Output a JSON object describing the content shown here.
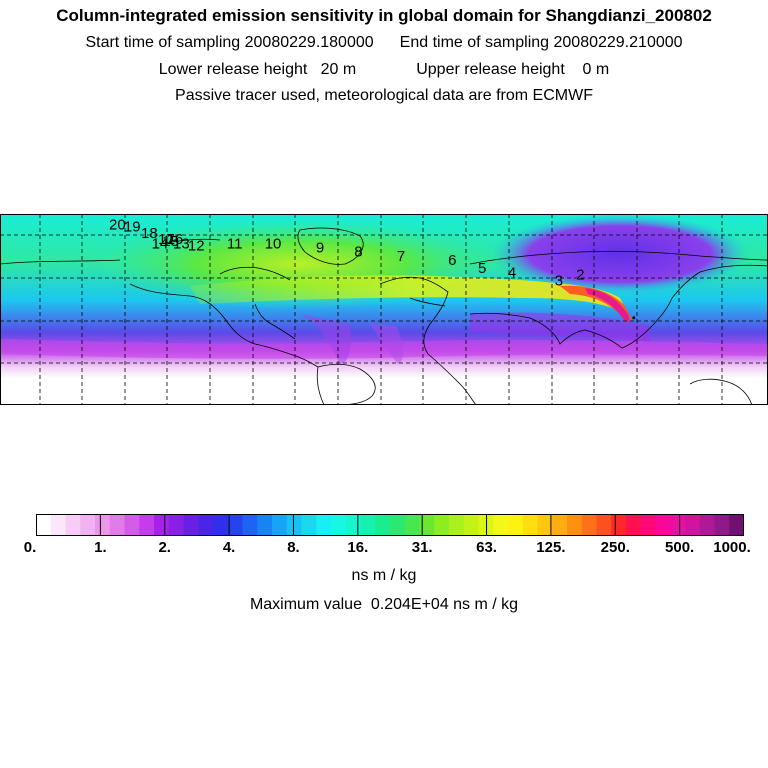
{
  "header": {
    "title": "Column-integrated emission sensitivity in global domain for Shangdianzi_200802",
    "start_label": "Start time of sampling 20080229.180000",
    "end_label": "End time of sampling 20080229.210000",
    "lower_label": "Lower release height   20 m",
    "upper_label": "Upper release height    0 m",
    "tracer_note": "Passive tracer used, meteorological data are from ECMWF"
  },
  "map": {
    "trajectory_labels": [
      {
        "text": "2",
        "lon": 92,
        "lat": 59
      },
      {
        "text": "3",
        "lon": 82,
        "lat": 56
      },
      {
        "text": "4",
        "lon": 60,
        "lat": 60
      },
      {
        "text": "5",
        "lon": 46,
        "lat": 62
      },
      {
        "text": "6",
        "lon": 32,
        "lat": 66
      },
      {
        "text": "7",
        "lon": 8,
        "lat": 68
      },
      {
        "text": "8",
        "lon": -12,
        "lat": 70
      },
      {
        "text": "9",
        "lon": -30,
        "lat": 72
      },
      {
        "text": "10",
        "lon": -52,
        "lat": 74
      },
      {
        "text": "11",
        "lon": -70,
        "lat": 74
      },
      {
        "text": "12",
        "lon": -88,
        "lat": 73
      },
      {
        "text": "13",
        "lon": -95,
        "lat": 74
      },
      {
        "text": "14",
        "lon": -105,
        "lat": 74
      },
      {
        "text": "15",
        "lon": -100,
        "lat": 75
      },
      {
        "text": "16",
        "lon": -98,
        "lat": 76
      },
      {
        "text": "17",
        "lon": -102,
        "lat": 76
      },
      {
        "text": "18",
        "lon": -110,
        "lat": 79
      },
      {
        "text": "19",
        "lon": -118,
        "lat": 82
      },
      {
        "text": "20",
        "lon": -125,
        "lat": 83
      }
    ],
    "source_lon": 117.1,
    "source_lat": 40.6
  },
  "colorbar": {
    "ticks": [
      "0.",
      "1.",
      "2.",
      "4.",
      "8.",
      "16.",
      "31.",
      "63.",
      "125.",
      "250.",
      "500.",
      "1000."
    ],
    "colors": [
      "#ffffff",
      "#fbe6fb",
      "#f6cdf6",
      "#f0b2f0",
      "#ea96ea",
      "#e27ae9",
      "#d55bea",
      "#c43cec",
      "#a820ec",
      "#8a20e8",
      "#6a1fe4",
      "#4a25e6",
      "#3030ea",
      "#2544f0",
      "#1d64f4",
      "#1784f6",
      "#15a4f6",
      "#18c0f4",
      "#1ad8f0",
      "#18eef4",
      "#18f6e4",
      "#18f4cc",
      "#18f0b0",
      "#1aec90",
      "#2ae870",
      "#46e850",
      "#6ae830",
      "#8cee20",
      "#aaf020",
      "#c4f218",
      "#dcf418",
      "#f2f81a",
      "#fff212",
      "#ffde10",
      "#ffc610",
      "#ffac10",
      "#ff9010",
      "#ff7018",
      "#ff5020",
      "#ff2828",
      "#ff1050",
      "#ff0878",
      "#f80898",
      "#e810a0",
      "#d014a0",
      "#b01898",
      "#901888",
      "#701070"
    ],
    "units": "ns m / kg"
  },
  "footer": {
    "max_value": "Maximum value  0.204E+04 ns m / kg"
  }
}
